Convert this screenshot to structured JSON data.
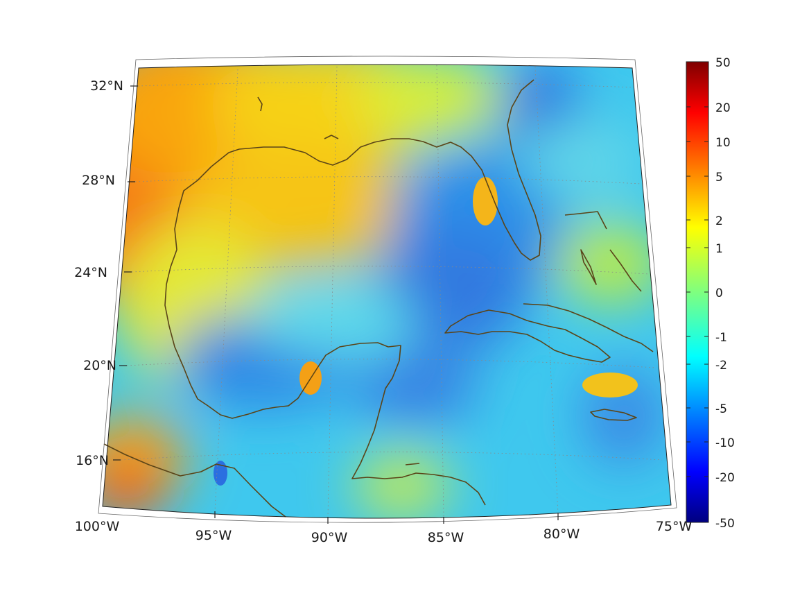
{
  "map": {
    "projection": "conic",
    "lon_range": [
      -100,
      -75
    ],
    "lat_range": [
      14,
      32.5
    ],
    "field_colormap": "jet",
    "coastline_color": "#5a4418",
    "grid": "dotted"
  },
  "axes": {
    "lon_labels": [
      "100°W",
      "95°W",
      "90°W",
      "85°W",
      "80°W",
      "75°W"
    ],
    "lon_values": [
      -100,
      -95,
      -90,
      -85,
      -80,
      -75
    ],
    "lat_labels": [
      "16°N",
      "20°N",
      "24°N",
      "28°N",
      "32°N"
    ],
    "lat_values": [
      16,
      20,
      24,
      28,
      32
    ]
  },
  "colorbar": {
    "labels": [
      "50",
      "20",
      "10",
      "5",
      "2",
      "1",
      "0",
      "-1",
      "-2",
      "-5",
      "-10",
      "-20",
      "-50"
    ],
    "range": [
      -50,
      50
    ],
    "colors": [
      "#00007f",
      "#0000ff",
      "#007fff",
      "#00ffff",
      "#7fff7f",
      "#ffff00",
      "#ff7f00",
      "#ff0000",
      "#7f0000"
    ]
  },
  "chart_data": {
    "type": "heatmap",
    "title": "",
    "xlabel": "",
    "ylabel": "",
    "x_ticks": [
      "100°W",
      "95°W",
      "90°W",
      "85°W",
      "80°W",
      "75°W"
    ],
    "y_ticks": [
      "16°N",
      "20°N",
      "24°N",
      "28°N",
      "32°N"
    ],
    "colorbar_ticks": [
      50,
      20,
      10,
      5,
      2,
      1,
      0,
      -1,
      -2,
      -5,
      -10,
      -20,
      -50
    ],
    "colorbar_range": [
      -50,
      50
    ],
    "grid": true,
    "legend": "colorbar-right",
    "regions_approx": [
      {
        "lon": -97.5,
        "lat": 29.0,
        "value": 4
      },
      {
        "lon": -96.0,
        "lat": 25.0,
        "value": 3
      },
      {
        "lon": -99.0,
        "lat": 15.0,
        "value": 6
      },
      {
        "lon": -85.5,
        "lat": 31.0,
        "value": 1
      },
      {
        "lon": -87.0,
        "lat": 27.5,
        "value": 1.5
      },
      {
        "lon": -84.5,
        "lat": 26.0,
        "value": -3
      },
      {
        "lon": -84.0,
        "lat": 24.0,
        "value": -5
      },
      {
        "lon": -92.0,
        "lat": 20.5,
        "value": -4
      },
      {
        "lon": -90.5,
        "lat": 20.0,
        "value": 3
      },
      {
        "lon": -82.0,
        "lat": 30.0,
        "value": -5
      },
      {
        "lon": -78.0,
        "lat": 24.0,
        "value": 1
      },
      {
        "lon": -77.0,
        "lat": 19.5,
        "value": 2
      },
      {
        "lon": -76.0,
        "lat": 17.5,
        "value": -4
      },
      {
        "lon": -86.0,
        "lat": 15.5,
        "value": 0
      }
    ]
  }
}
